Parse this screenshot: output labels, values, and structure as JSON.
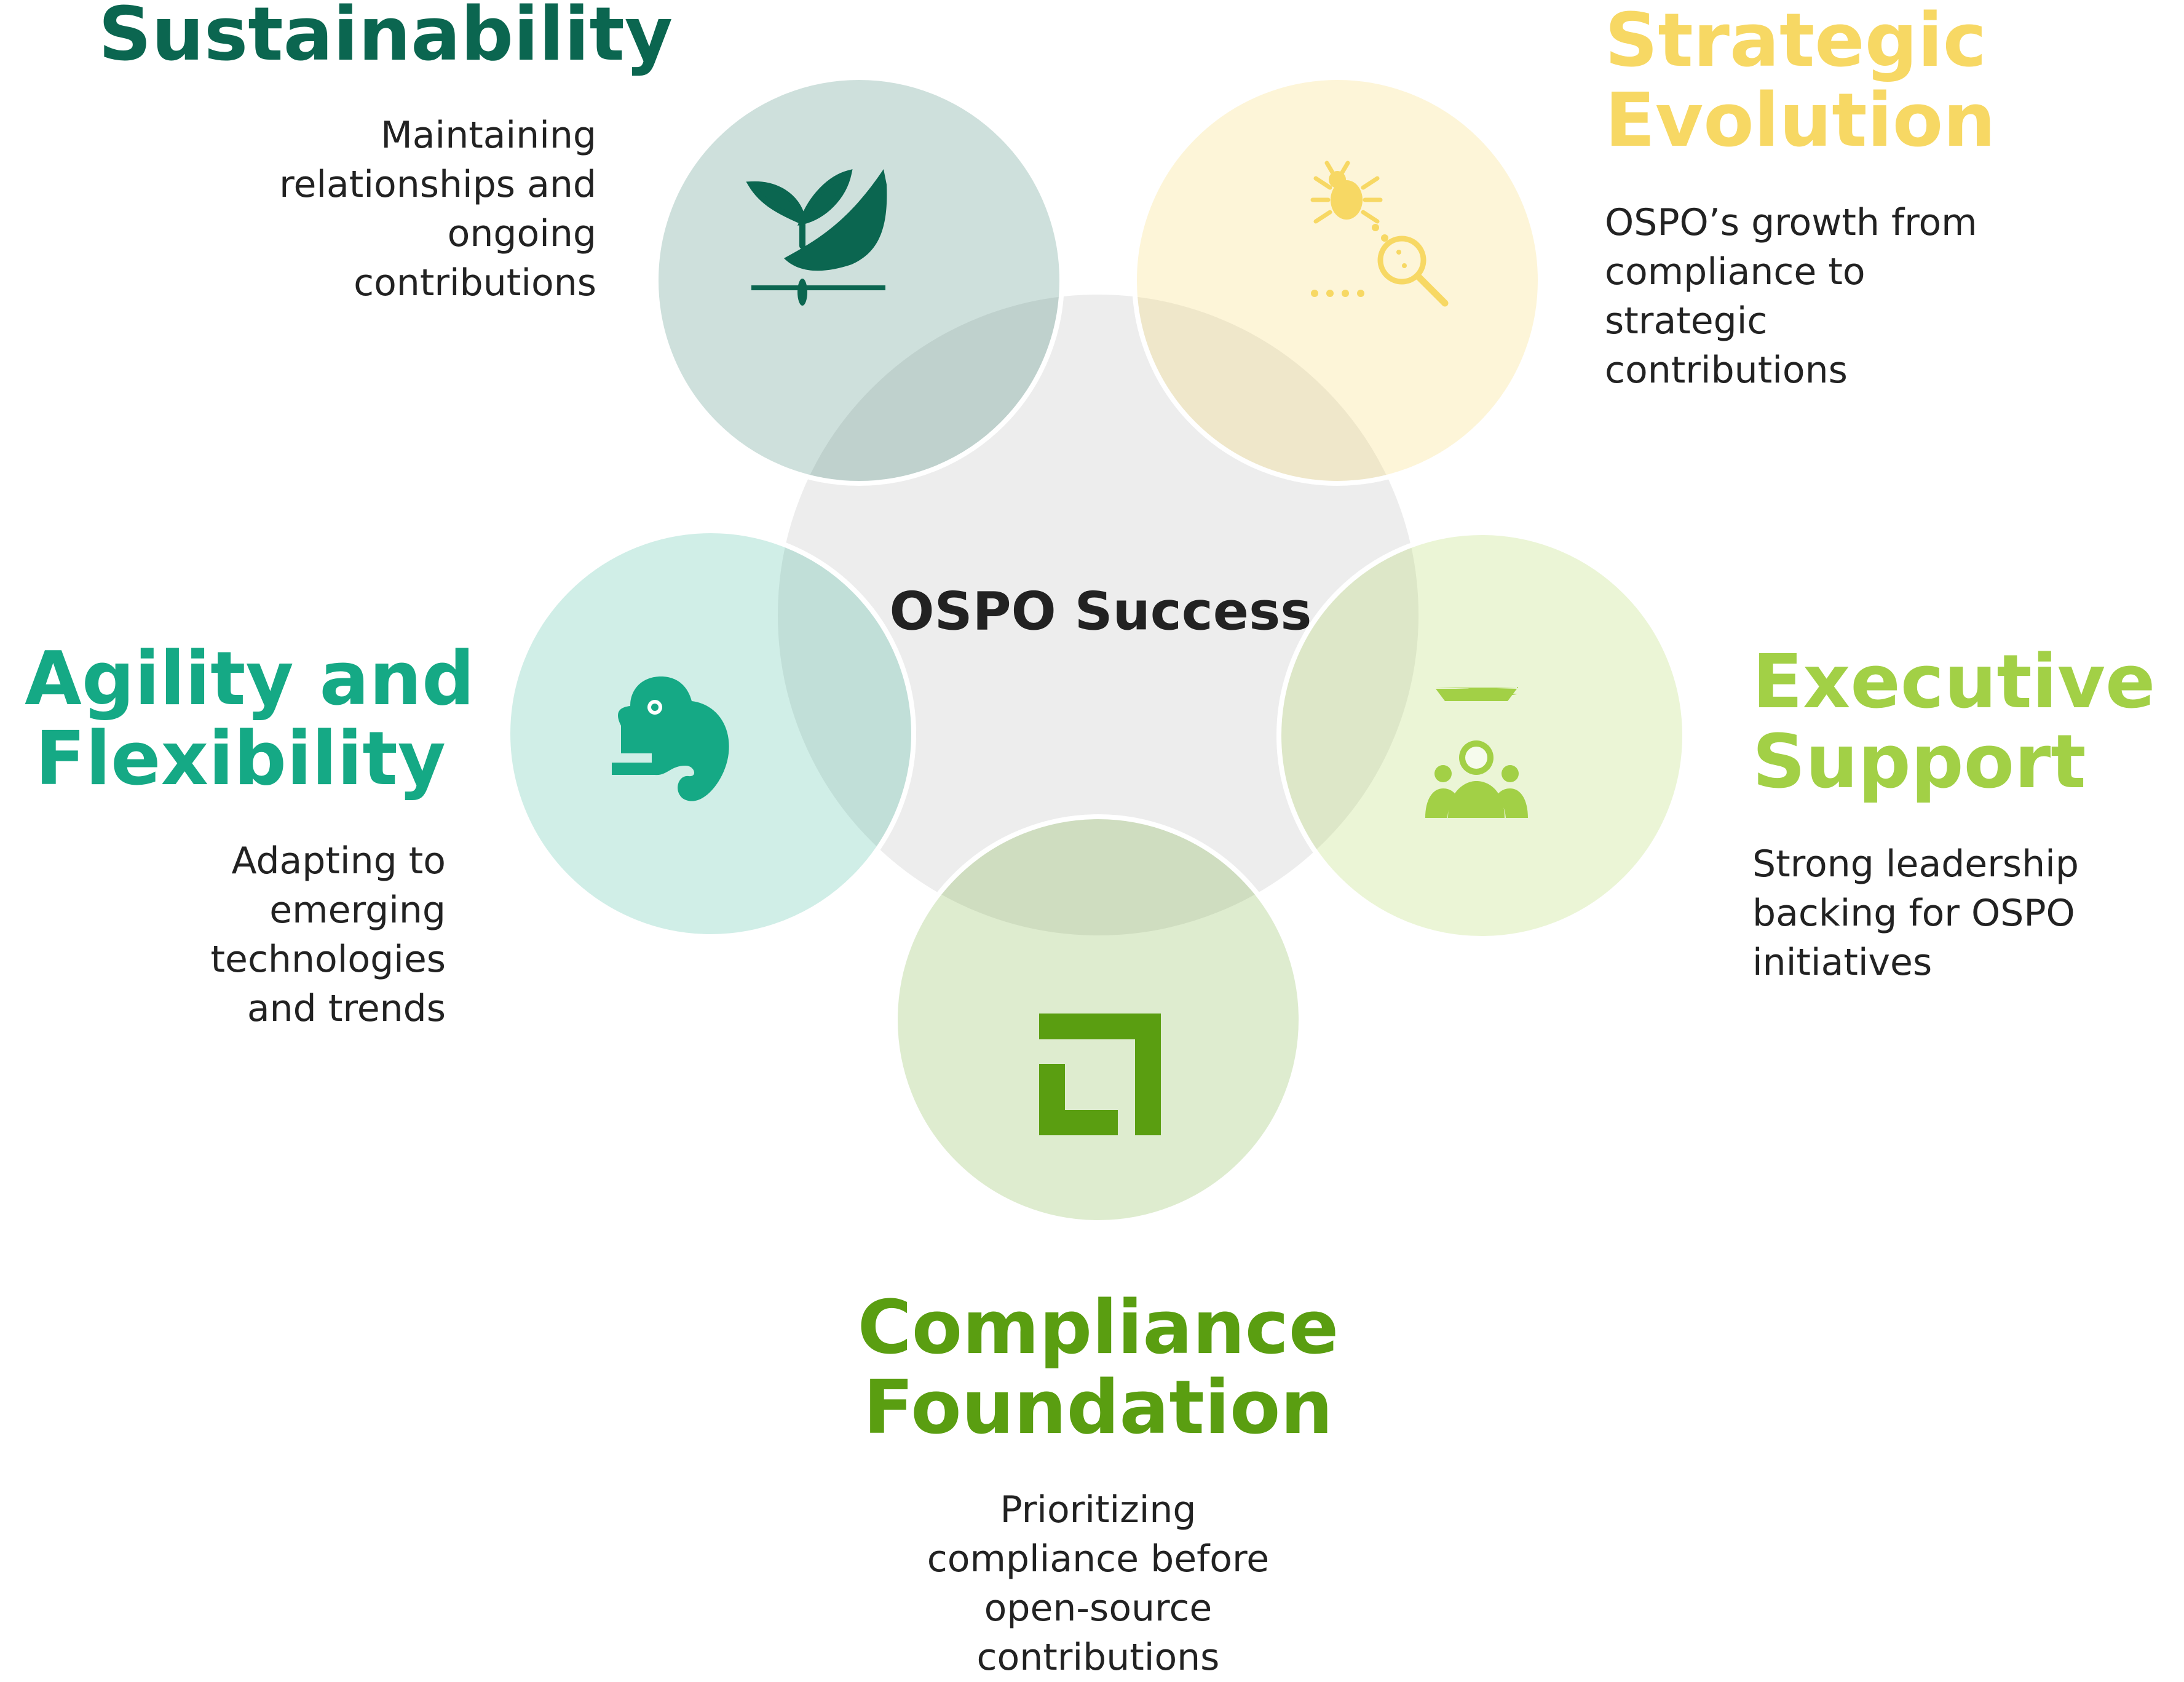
{
  "center": {
    "label": "OSPO Success"
  },
  "colors": {
    "sustainability": "#0b6650",
    "strategic": "#f7d864",
    "agility": "#15a985",
    "executive": "#a2d046",
    "compliance": "#5a9e11",
    "text": "#222222",
    "center_fill": "#ededed",
    "center_stroke": "#ffffff"
  },
  "segments": {
    "sustainability": {
      "title": [
        "Sustainability"
      ],
      "description": [
        "Maintaining",
        "relationships and",
        "ongoing",
        "contributions"
      ],
      "icon": "sprout-leaf-icon"
    },
    "strategic": {
      "title": [
        "Strategic",
        "Evolution"
      ],
      "description": [
        "OSPO’s growth from",
        "compliance to",
        "strategic",
        "contributions"
      ],
      "icon": "bug-magnifier-icon"
    },
    "agility": {
      "title": [
        "Agility and",
        "Flexibility"
      ],
      "description": [
        "Adapting to",
        "emerging",
        "technologies",
        "and trends"
      ],
      "icon": "chameleon-icon"
    },
    "executive": {
      "title": [
        "Executive",
        "Support"
      ],
      "description": [
        "Strong leadership",
        "backing for OSPO",
        "initiatives"
      ],
      "icon": "leader-group-icon"
    },
    "compliance": {
      "title": [
        "Compliance",
        "Foundation"
      ],
      "description": [
        "Prioritizing",
        "compliance before",
        "open-source",
        "contributions"
      ],
      "icon": "square-frame-icon"
    }
  }
}
